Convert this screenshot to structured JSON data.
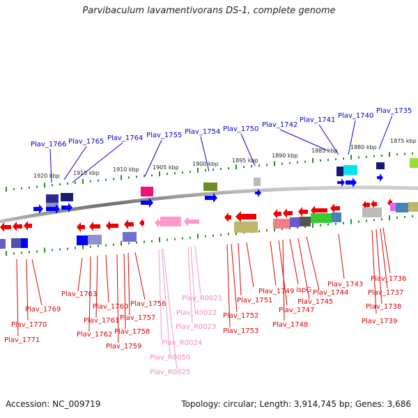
{
  "title": "Parvibaculum lavamentivorans DS-1, complete genome",
  "accession_text": "Accession: NC_009719",
  "summary_text": "Topology: circular; Length: 3,914,745 bp; Genes: 3,686",
  "colors": {
    "top_label": "#0000cc",
    "bottom_label": "#dd0000",
    "rna_label": "#ee88bb",
    "backbone": "#888888",
    "tick": "#228b22"
  },
  "kbp_labels": [
    {
      "text": "1920 kbp"
    },
    {
      "text": "1915 kbp"
    },
    {
      "text": "1910 kbp"
    },
    {
      "text": "1905 kbp"
    },
    {
      "text": "1900 kbp"
    },
    {
      "text": "1895 kbp"
    },
    {
      "text": "1890 kbp"
    },
    {
      "text": "1885 kbp"
    },
    {
      "text": "1880 kbp"
    },
    {
      "text": "1875 kbp"
    }
  ],
  "top_genes": [
    {
      "text": "Plav_1766"
    },
    {
      "text": "Plav_1765"
    },
    {
      "text": "Plav_1764"
    },
    {
      "text": "Plav_1755"
    },
    {
      "text": "Plav_1754"
    },
    {
      "text": "Plav_1750"
    },
    {
      "text": "Plav_1742"
    },
    {
      "text": "Plav_1741"
    },
    {
      "text": "Plav_1740"
    },
    {
      "text": "Plav_1735"
    }
  ],
  "bottom_genes": [
    {
      "text": "Plav_1769"
    },
    {
      "text": "Plav_1770"
    },
    {
      "text": "Plav_1771"
    },
    {
      "text": "Plav_1763"
    },
    {
      "text": "Plav_1760"
    },
    {
      "text": "Plav_1761"
    },
    {
      "text": "Plav_1762"
    },
    {
      "text": "Plav_1756"
    },
    {
      "text": "Plav_1757"
    },
    {
      "text": "Plav_1758"
    },
    {
      "text": "Plav_1759"
    },
    {
      "text": "Plav_R0021"
    },
    {
      "text": "Plav_R0022"
    },
    {
      "text": "Plav_R0023"
    },
    {
      "text": "Plav_R0024"
    },
    {
      "text": "Plav_R0050"
    },
    {
      "text": "Plav_R0025"
    },
    {
      "text": "Plav_1749"
    },
    {
      "text": "Plav_1751"
    },
    {
      "text": "Plav_1752"
    },
    {
      "text": "Plav_1753"
    },
    {
      "text": "ispG"
    },
    {
      "text": "Plav_1747"
    },
    {
      "text": "Plav_1748"
    },
    {
      "text": "Plav_1745"
    },
    {
      "text": "Plav_1744"
    },
    {
      "text": "Plav_1743"
    },
    {
      "text": "Plav_1736"
    },
    {
      "text": "Plav_1737"
    },
    {
      "text": "Plav_1738"
    },
    {
      "text": "Plav_1739"
    }
  ]
}
